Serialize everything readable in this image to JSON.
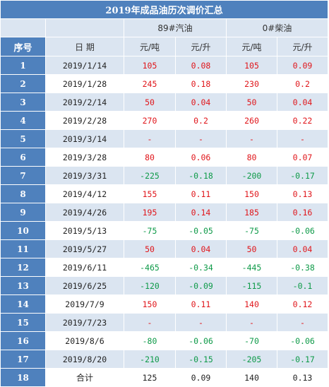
{
  "title": "2019年成品油历次调价汇总",
  "header": {
    "seq": "序号",
    "date": "日 期",
    "gasoline": "89#汽油",
    "diesel": "0#柴油",
    "unit_ton": "元/吨",
    "unit_liter": "元/升"
  },
  "rows": [
    {
      "seq": "1",
      "date": "2019/1/14",
      "g_ton": "105",
      "g_liter": "0.08",
      "d_ton": "105",
      "d_liter": "0.09"
    },
    {
      "seq": "2",
      "date": "2019/1/28",
      "g_ton": "245",
      "g_liter": "0.18",
      "d_ton": "230",
      "d_liter": "0.2"
    },
    {
      "seq": "3",
      "date": "2019/2/14",
      "g_ton": "50",
      "g_liter": "0.04",
      "d_ton": "50",
      "d_liter": "0.04"
    },
    {
      "seq": "4",
      "date": "2019/2/28",
      "g_ton": "270",
      "g_liter": "0.2",
      "d_ton": "260",
      "d_liter": "0.22"
    },
    {
      "seq": "5",
      "date": "2019/3/14",
      "g_ton": "-",
      "g_liter": "-",
      "d_ton": "-",
      "d_liter": "-"
    },
    {
      "seq": "6",
      "date": "2019/3/28",
      "g_ton": "80",
      "g_liter": "0.06",
      "d_ton": "80",
      "d_liter": "0.07"
    },
    {
      "seq": "7",
      "date": "2019/3/31",
      "g_ton": "-225",
      "g_liter": "-0.18",
      "d_ton": "-200",
      "d_liter": "-0.17"
    },
    {
      "seq": "8",
      "date": "2019/4/12",
      "g_ton": "155",
      "g_liter": "0.11",
      "d_ton": "150",
      "d_liter": "0.13"
    },
    {
      "seq": "9",
      "date": "2019/4/26",
      "g_ton": "195",
      "g_liter": "0.14",
      "d_ton": "185",
      "d_liter": "0.16"
    },
    {
      "seq": "10",
      "date": "2019/5/13",
      "g_ton": "-75",
      "g_liter": "-0.05",
      "d_ton": "-75",
      "d_liter": "-0.06"
    },
    {
      "seq": "11",
      "date": "2019/5/27",
      "g_ton": "50",
      "g_liter": "0.04",
      "d_ton": "50",
      "d_liter": "0.04"
    },
    {
      "seq": "12",
      "date": "2019/6/11",
      "g_ton": "-465",
      "g_liter": "-0.34",
      "d_ton": "-445",
      "d_liter": "-0.38"
    },
    {
      "seq": "13",
      "date": "2019/6/25",
      "g_ton": "-120",
      "g_liter": "-0.09",
      "d_ton": "-115",
      "d_liter": "-0.1"
    },
    {
      "seq": "14",
      "date": "2019/7/9",
      "g_ton": "150",
      "g_liter": "0.11",
      "d_ton": "140",
      "d_liter": "0.12"
    },
    {
      "seq": "15",
      "date": "2019/7/23",
      "g_ton": "-",
      "g_liter": "-",
      "d_ton": "-",
      "d_liter": "-"
    },
    {
      "seq": "16",
      "date": "2019/8/6",
      "g_ton": "-80",
      "g_liter": "-0.06",
      "d_ton": "-70",
      "d_liter": "-0.06"
    },
    {
      "seq": "17",
      "date": "2019/8/20",
      "g_ton": "-210",
      "g_liter": "-0.15",
      "d_ton": "-205",
      "d_liter": "-0.17"
    },
    {
      "seq": "18",
      "date": "合计",
      "g_ton": "125",
      "g_liter": "0.09",
      "d_ton": "140",
      "d_liter": "0.13"
    }
  ],
  "colors": {
    "header_blue": "#4f81bd",
    "band_light": "#dbe5f1",
    "increase": "#e0161b",
    "decrease": "#0e9a48",
    "total": "#222222"
  }
}
